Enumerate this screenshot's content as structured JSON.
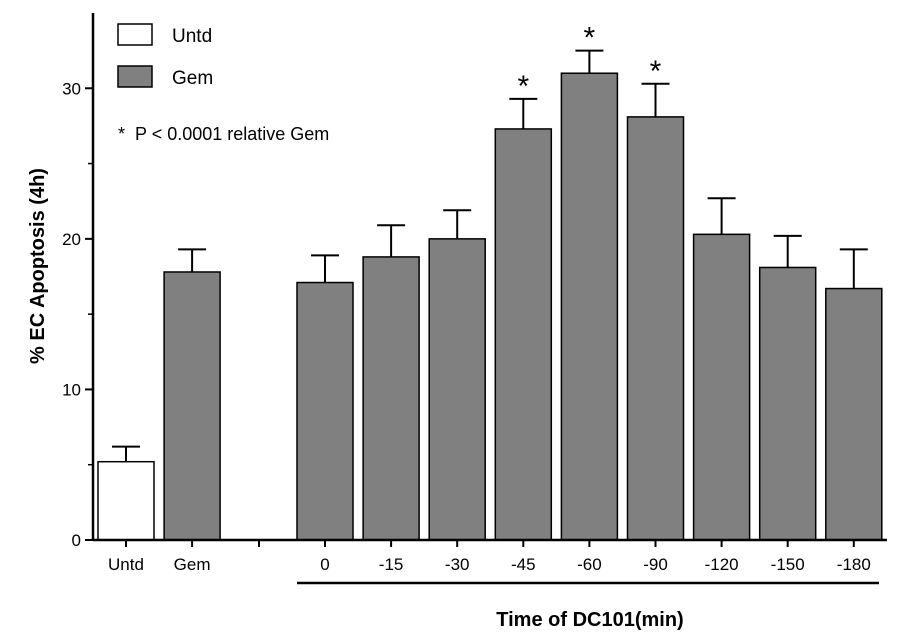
{
  "chart_data": {
    "type": "bar",
    "ylabel": "% EC Apoptosis (4h)",
    "xlabel": "Time of DC101(min)",
    "ylim": [
      0,
      35
    ],
    "yticks": [
      0,
      10,
      20,
      30
    ],
    "grid": false,
    "legend_position": "top-left",
    "legend": [
      {
        "label": "Untd",
        "fill": "#ffffff"
      },
      {
        "label": "Gem",
        "fill": "#808080"
      }
    ],
    "annotation": "*  P < 0.0001 relative Gem",
    "colors": {
      "untd": "#ffffff",
      "gem": "#808080",
      "stroke": "#000000"
    },
    "bars": [
      {
        "label": "Untd",
        "value": 5.2,
        "error": 1.0,
        "fill": "#ffffff",
        "sig": false,
        "group": "control"
      },
      {
        "label": "Gem",
        "value": 17.8,
        "error": 1.5,
        "fill": "#808080",
        "sig": false,
        "group": "control"
      },
      {
        "label": "0",
        "value": 17.1,
        "error": 1.8,
        "fill": "#808080",
        "sig": false,
        "group": "dc101"
      },
      {
        "label": "-15",
        "value": 18.8,
        "error": 2.1,
        "fill": "#808080",
        "sig": false,
        "group": "dc101"
      },
      {
        "label": "-30",
        "value": 20.0,
        "error": 1.9,
        "fill": "#808080",
        "sig": false,
        "group": "dc101"
      },
      {
        "label": "-45",
        "value": 27.3,
        "error": 2.0,
        "fill": "#808080",
        "sig": true,
        "group": "dc101"
      },
      {
        "label": "-60",
        "value": 31.0,
        "error": 1.5,
        "fill": "#808080",
        "sig": true,
        "group": "dc101"
      },
      {
        "label": "-90",
        "value": 28.1,
        "error": 2.2,
        "fill": "#808080",
        "sig": true,
        "group": "dc101"
      },
      {
        "label": "-120",
        "value": 20.3,
        "error": 2.4,
        "fill": "#808080",
        "sig": false,
        "group": "dc101"
      },
      {
        "label": "-150",
        "value": 18.1,
        "error": 2.1,
        "fill": "#808080",
        "sig": false,
        "group": "dc101"
      },
      {
        "label": "-180",
        "value": 16.7,
        "error": 2.6,
        "fill": "#808080",
        "sig": false,
        "group": "dc101"
      }
    ],
    "sig_marker": "*"
  }
}
